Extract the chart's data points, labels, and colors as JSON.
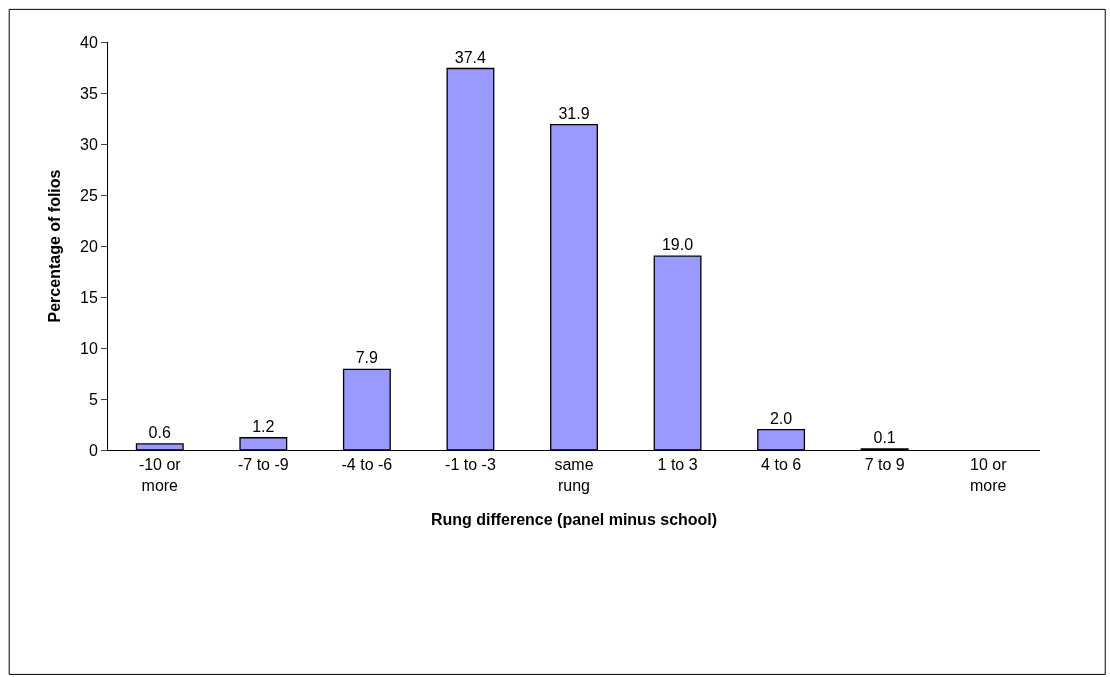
{
  "chart_data": {
    "type": "bar",
    "xlabel": "Rung difference (panel minus school)",
    "ylabel": "Percentage of folios",
    "categories": [
      "-10 or more",
      "-7 to -9",
      "-4 to -6",
      "-1 to -3",
      "same rung",
      "1 to 3",
      "4 to 6",
      "7 to 9",
      "10 or more"
    ],
    "values": [
      0.6,
      1.2,
      7.9,
      37.4,
      31.9,
      19.0,
      2.0,
      0.1,
      null
    ],
    "value_labels": [
      "0.6",
      "1.2",
      "7.9",
      "37.4",
      "31.9",
      "19.0",
      "2.0",
      "0.1",
      null
    ],
    "color": "#9999ff",
    "ylim": [
      0,
      40
    ],
    "yticks": [
      0,
      5,
      10,
      15,
      20,
      25,
      30,
      35,
      40
    ]
  }
}
